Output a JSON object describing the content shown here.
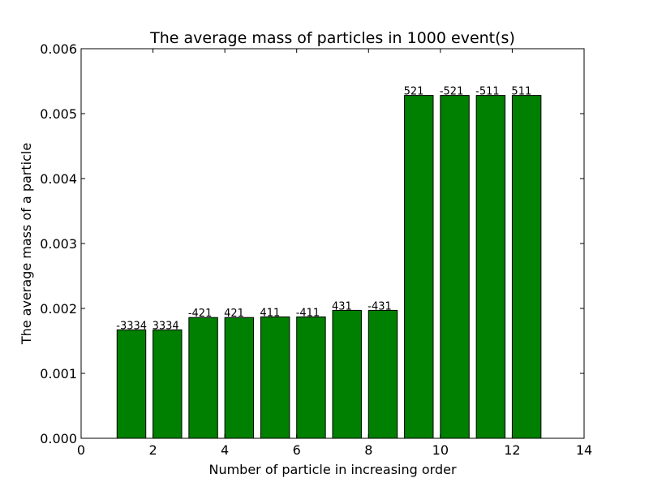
{
  "chart_data": {
    "type": "bar",
    "title": "The average mass of particles in 1000 event(s)",
    "xlabel": "Number of particle in increasing order",
    "ylabel": "The average mass of a particle",
    "xlim": [
      0,
      14
    ],
    "ylim": [
      0,
      0.006
    ],
    "xticks": [
      "0",
      "2",
      "4",
      "6",
      "8",
      "10",
      "12",
      "14"
    ],
    "yticks": [
      "0.000",
      "0.001",
      "0.002",
      "0.003",
      "0.004",
      "0.005",
      "0.006"
    ],
    "bar_width": 0.8,
    "bar_color": "#008000",
    "grid": false,
    "bars": [
      {
        "x": 1,
        "value": 0.00167,
        "label": "-3334"
      },
      {
        "x": 2,
        "value": 0.00167,
        "label": "3334"
      },
      {
        "x": 3,
        "value": 0.00186,
        "label": "-421"
      },
      {
        "x": 4,
        "value": 0.00186,
        "label": "421"
      },
      {
        "x": 5,
        "value": 0.00187,
        "label": "411"
      },
      {
        "x": 6,
        "value": 0.00187,
        "label": "-411"
      },
      {
        "x": 7,
        "value": 0.00197,
        "label": "431"
      },
      {
        "x": 8,
        "value": 0.00197,
        "label": "-431"
      },
      {
        "x": 9,
        "value": 0.00528,
        "label": "521"
      },
      {
        "x": 10,
        "value": 0.00528,
        "label": "-521"
      },
      {
        "x": 11,
        "value": 0.00528,
        "label": "-511"
      },
      {
        "x": 12,
        "value": 0.00528,
        "label": "511"
      }
    ]
  }
}
